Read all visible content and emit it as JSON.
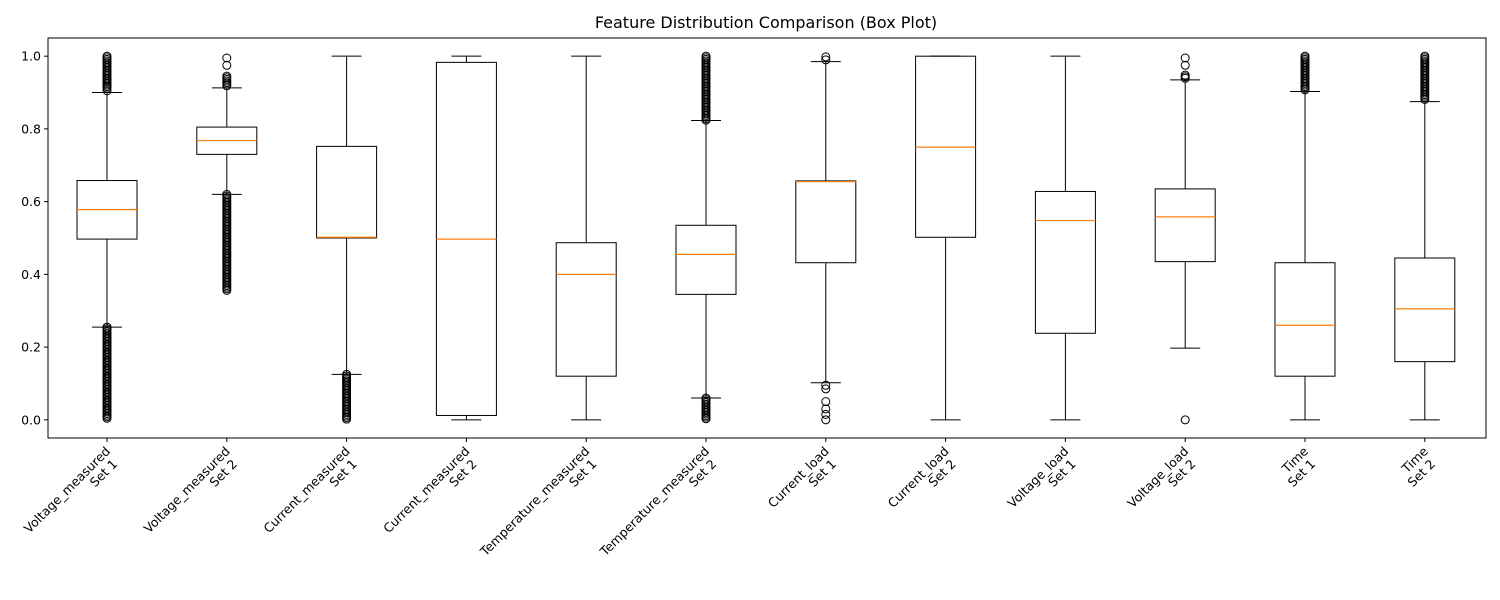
{
  "chart_data": {
    "type": "box",
    "title": "Feature Distribution Comparison (Box Plot)",
    "xlabel": "",
    "ylabel": "",
    "ylim": [
      -0.05,
      1.05
    ],
    "yticks": [
      "0.0",
      "0.2",
      "0.4",
      "0.6",
      "0.8",
      "1.0"
    ],
    "ytick_values": [
      0.0,
      0.2,
      0.4,
      0.6,
      0.8,
      1.0
    ],
    "grid": false,
    "categories": [
      [
        "Voltage_measured",
        "Set 1"
      ],
      [
        "Voltage_measured",
        "Set 2"
      ],
      [
        "Current_measured",
        "Set 1"
      ],
      [
        "Current_measured",
        "Set 2"
      ],
      [
        "Temperature_measured",
        "Set 1"
      ],
      [
        "Temperature_measured",
        "Set 2"
      ],
      [
        "Current_load",
        "Set 1"
      ],
      [
        "Current_load",
        "Set 2"
      ],
      [
        "Voltage_load",
        "Set 1"
      ],
      [
        "Voltage_load",
        "Set 2"
      ],
      [
        "Time",
        "Set 1"
      ],
      [
        "Time",
        "Set 2"
      ]
    ],
    "boxes": [
      {
        "whislo": 0.255,
        "q1": 0.497,
        "med": 0.578,
        "q3": 0.658,
        "whishi": 0.9,
        "fliers_low": [
          0.0,
          0.255
        ],
        "fliers_high": [
          0.91,
          1.0
        ],
        "isolated_high": [
          0.905,
          0.935
        ]
      },
      {
        "whislo": 0.62,
        "q1": 0.73,
        "med": 0.768,
        "q3": 0.805,
        "whishi": 0.913,
        "fliers_low": [
          0.355,
          0.62
        ],
        "fliers_high": [
          0.915,
          0.945
        ],
        "isolated_high": [
          0.975,
          0.995
        ]
      },
      {
        "whislo": 0.125,
        "q1": 0.5,
        "med": 0.502,
        "q3": 0.752,
        "whishi": 1.0,
        "fliers_low": [
          0.0,
          0.125
        ],
        "fliers_high": [],
        "isolated_high": []
      },
      {
        "whislo": 0.0,
        "q1": 0.012,
        "med": 0.497,
        "q3": 0.983,
        "whishi": 1.0,
        "fliers_low": [],
        "fliers_high": [],
        "isolated_high": []
      },
      {
        "whislo": 0.0,
        "q1": 0.12,
        "med": 0.4,
        "q3": 0.487,
        "whishi": 1.0,
        "fliers_low": [],
        "fliers_high": [],
        "isolated_high": []
      },
      {
        "whislo": 0.06,
        "q1": 0.345,
        "med": 0.455,
        "q3": 0.535,
        "whishi": 0.823,
        "fliers_low": [
          0.0,
          0.06
        ],
        "fliers_high": [
          0.823,
          1.0
        ],
        "isolated_high": []
      },
      {
        "whislo": 0.102,
        "q1": 0.432,
        "med": 0.655,
        "q3": 0.657,
        "whishi": 0.985,
        "fliers_low": [],
        "fliers_high": [],
        "isolated_high": [
          0.99,
          0.998
        ],
        "isolated_low": [
          0.095,
          0.085,
          0.05,
          0.03,
          0.015,
          0.0
        ]
      },
      {
        "whislo": 0.0,
        "q1": 0.502,
        "med": 0.75,
        "q3": 1.0,
        "whishi": 1.0,
        "fliers_low": [],
        "fliers_high": [],
        "isolated_high": []
      },
      {
        "whislo": 0.0,
        "q1": 0.238,
        "med": 0.548,
        "q3": 0.628,
        "whishi": 1.0,
        "fliers_low": [],
        "fliers_high": [],
        "isolated_high": []
      },
      {
        "whislo": 0.197,
        "q1": 0.435,
        "med": 0.558,
        "q3": 0.635,
        "whishi": 0.935,
        "fliers_low": [],
        "fliers_high": [
          0.938,
          0.948
        ],
        "isolated_high": [
          0.975,
          0.995
        ],
        "isolated_low": [
          0.0
        ]
      },
      {
        "whislo": 0.0,
        "q1": 0.12,
        "med": 0.26,
        "q3": 0.432,
        "whishi": 0.903,
        "fliers_low": [],
        "fliers_high": [
          0.905,
          1.0
        ],
        "isolated_high": []
      },
      {
        "whislo": 0.0,
        "q1": 0.16,
        "med": 0.305,
        "q3": 0.445,
        "whishi": 0.875,
        "fliers_low": [],
        "fliers_high": [
          0.878,
          1.0
        ],
        "isolated_high": []
      }
    ]
  }
}
